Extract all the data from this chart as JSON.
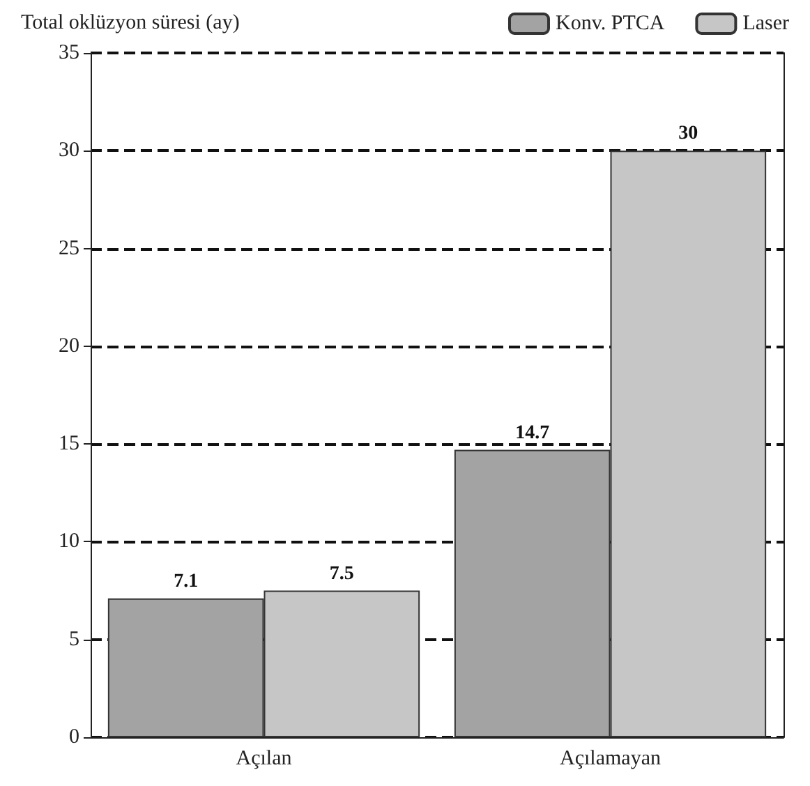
{
  "chart_data": {
    "type": "bar",
    "ylabel": "Total oklüzyon süresi (ay)",
    "categories": [
      "Açılan",
      "Açılamayan"
    ],
    "series": [
      {
        "name": "Konv. PTCA",
        "color": "#a3a3a3",
        "values": [
          7.1,
          14.7
        ]
      },
      {
        "name": "Laser",
        "color": "#c6c6c6",
        "values": [
          7.5,
          30
        ]
      }
    ],
    "ylim": [
      0,
      35
    ],
    "yticks": [
      0,
      5,
      10,
      15,
      20,
      25,
      30,
      35
    ],
    "grid": "y",
    "line_style": "dashed",
    "legend": "top right",
    "data_labels": true
  }
}
